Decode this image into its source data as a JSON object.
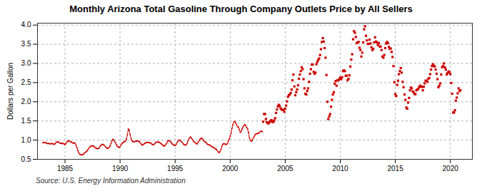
{
  "chart_data": {
    "type": "line",
    "title": "Monthly Arizona Total Gasoline Through Company Outlets Price by All Sellers",
    "ylabel": "Dollars per Gallon",
    "source": "Source: U.S. Energy Information Administration",
    "xlim": [
      1982.5,
      2022
    ],
    "ylim": [
      0.5,
      4.05
    ],
    "xticks": [
      1985,
      1990,
      1995,
      2000,
      2005,
      2010,
      2015,
      2020
    ],
    "yticks": [
      0.5,
      {
        "value": 1.0,
        "label": "1.0"
      },
      1.5,
      {
        "value": 2.0,
        "label": "2.0"
      },
      2.5,
      {
        "value": 3.0,
        "label": "3.0"
      },
      3.5,
      {
        "value": 4.0,
        "label": "4.0"
      }
    ],
    "grid": true,
    "series": [
      {
        "type": "line",
        "color": "#cc0000",
        "marker": "square",
        "x": [
          1983.0,
          1983.083,
          1983.167,
          1983.25,
          1983.333,
          1983.417,
          1983.5,
          1983.583,
          1983.667,
          1983.75,
          1983.833,
          1983.917,
          1984.0,
          1984.083,
          1984.167,
          1984.25,
          1984.333,
          1984.417,
          1984.5,
          1984.583,
          1984.667,
          1984.75,
          1984.833,
          1984.917,
          1985.0,
          1985.083,
          1985.167,
          1985.25,
          1985.333,
          1985.417,
          1985.5,
          1985.583,
          1985.667,
          1985.75,
          1985.833,
          1985.917,
          1986.0,
          1986.083,
          1986.167,
          1986.25,
          1986.333,
          1986.417,
          1986.5,
          1986.583,
          1986.667,
          1986.75,
          1986.833,
          1986.917,
          1987.0,
          1987.083,
          1987.167,
          1987.25,
          1987.333,
          1987.417,
          1987.5,
          1987.583,
          1987.667,
          1987.75,
          1987.833,
          1987.917,
          1988.0,
          1988.083,
          1988.167,
          1988.25,
          1988.333,
          1988.417,
          1988.5,
          1988.583,
          1988.667,
          1988.75,
          1988.833,
          1988.917,
          1989.0,
          1989.083,
          1989.167,
          1989.25,
          1989.333,
          1989.417,
          1989.5,
          1989.583,
          1989.667,
          1989.75,
          1989.833,
          1989.917,
          1990.0,
          1990.083,
          1990.167,
          1990.25,
          1990.333,
          1990.417,
          1990.5,
          1990.583,
          1990.667,
          1990.75,
          1990.833,
          1990.917,
          1991.0,
          1991.083,
          1991.167,
          1991.25,
          1991.333,
          1991.417,
          1991.5,
          1991.583,
          1991.667,
          1991.75,
          1991.833,
          1991.917,
          1992.0,
          1992.083,
          1992.167,
          1992.25,
          1992.333,
          1992.417,
          1992.5,
          1992.583,
          1992.667,
          1992.75,
          1992.833,
          1992.917,
          1993.0,
          1993.083,
          1993.167,
          1993.25,
          1993.333,
          1993.417,
          1993.5,
          1993.583,
          1993.667,
          1993.75,
          1993.833,
          1993.917,
          1994.0,
          1994.083,
          1994.167,
          1994.25,
          1994.333,
          1994.417,
          1994.5,
          1994.583,
          1994.667,
          1994.75,
          1994.833,
          1994.917,
          1995.0,
          1995.083,
          1995.167,
          1995.25,
          1995.333,
          1995.417,
          1995.5,
          1995.583,
          1995.667,
          1995.75,
          1995.833,
          1995.917,
          1996.0,
          1996.083,
          1996.167,
          1996.25,
          1996.333,
          1996.417,
          1996.5,
          1996.583,
          1996.667,
          1996.75,
          1996.833,
          1996.917,
          1997.0,
          1997.083,
          1997.167,
          1997.25,
          1997.333,
          1997.417,
          1997.5,
          1997.583,
          1997.667,
          1997.75,
          1997.833,
          1997.917,
          1998.0,
          1998.083,
          1998.167,
          1998.25,
          1998.333,
          1998.417,
          1998.5,
          1998.583,
          1998.667,
          1998.75,
          1998.833,
          1998.917,
          1999.0,
          1999.083,
          1999.167,
          1999.25,
          1999.333,
          1999.417,
          1999.5,
          1999.583,
          1999.667,
          1999.75,
          1999.833,
          1999.917,
          2000.0,
          2000.083,
          2000.167,
          2000.25,
          2000.333,
          2000.417,
          2000.5,
          2000.583,
          2000.667,
          2000.75,
          2000.833,
          2000.917,
          2001.0,
          2001.083,
          2001.167,
          2001.25,
          2001.333,
          2001.417,
          2001.5,
          2001.583,
          2001.667,
          2001.75,
          2001.833,
          2001.917,
          2002.0,
          2002.083,
          2002.167,
          2002.25,
          2002.333,
          2002.417,
          2002.5,
          2002.583,
          2002.667,
          2002.75,
          2002.833,
          2002.917
        ],
        "values": [
          0.93,
          0.94,
          0.94,
          0.93,
          0.92,
          0.91,
          0.91,
          0.91,
          0.9,
          0.91,
          0.91,
          0.9,
          0.89,
          0.9,
          0.93,
          0.95,
          0.95,
          0.95,
          0.93,
          0.92,
          0.91,
          0.92,
          0.91,
          0.9,
          0.88,
          0.91,
          0.95,
          0.97,
          0.98,
          0.97,
          0.96,
          0.95,
          0.93,
          0.92,
          0.93,
          0.92,
          0.87,
          0.8,
          0.73,
          0.67,
          0.63,
          0.62,
          0.62,
          0.62,
          0.63,
          0.66,
          0.68,
          0.7,
          0.72,
          0.75,
          0.79,
          0.82,
          0.84,
          0.85,
          0.85,
          0.85,
          0.83,
          0.8,
          0.79,
          0.78,
          0.78,
          0.79,
          0.83,
          0.86,
          0.88,
          0.89,
          0.88,
          0.86,
          0.83,
          0.8,
          0.79,
          0.79,
          0.81,
          0.84,
          0.91,
          0.97,
          1.02,
          1.01,
          0.97,
          0.93,
          0.88,
          0.84,
          0.82,
          0.81,
          0.83,
          0.87,
          0.91,
          0.93,
          0.95,
          0.96,
          0.97,
          1.03,
          1.14,
          1.29,
          1.26,
          1.14,
          1.04,
          0.98,
          0.96,
          0.96,
          0.96,
          0.97,
          0.97,
          0.98,
          0.97,
          0.96,
          0.93,
          0.9,
          0.87,
          0.88,
          0.9,
          0.92,
          0.93,
          0.94,
          0.94,
          0.94,
          0.93,
          0.93,
          0.91,
          0.89,
          0.88,
          0.89,
          0.91,
          0.94,
          0.95,
          0.95,
          0.95,
          0.94,
          0.92,
          0.9,
          0.88,
          0.86,
          0.84,
          0.86,
          0.89,
          0.93,
          0.97,
          0.99,
          0.98,
          0.96,
          0.93,
          0.9,
          0.88,
          0.86,
          0.86,
          0.88,
          0.93,
          0.97,
          1.0,
          1.0,
          0.98,
          0.96,
          0.93,
          0.9,
          0.88,
          0.87,
          0.88,
          0.91,
          0.97,
          1.03,
          1.07,
          1.08,
          1.05,
          1.01,
          0.97,
          0.95,
          0.93,
          0.91,
          0.9,
          0.93,
          0.98,
          1.02,
          1.04,
          1.05,
          1.03,
          0.99,
          0.96,
          0.95,
          0.93,
          0.9,
          0.88,
          0.88,
          0.87,
          0.85,
          0.83,
          0.82,
          0.81,
          0.79,
          0.77,
          0.76,
          0.73,
          0.69,
          0.68,
          0.7,
          0.76,
          0.84,
          0.89,
          0.91,
          0.9,
          0.89,
          0.89,
          0.91,
          0.97,
          1.03,
          1.1,
          1.18,
          1.31,
          1.4,
          1.47,
          1.49,
          1.45,
          1.4,
          1.35,
          1.34,
          1.28,
          1.2,
          1.23,
          1.29,
          1.34,
          1.38,
          1.4,
          1.38,
          1.33,
          1.29,
          1.2,
          1.06,
          1.0,
          0.97,
          0.99,
          1.04,
          1.09,
          1.13,
          1.16,
          1.17,
          1.17,
          1.18,
          1.2,
          1.23,
          1.23,
          1.22
        ]
      },
      {
        "type": "scatter",
        "color": "#cc0000",
        "marker": "square",
        "x": [
          2003.0,
          2003.083,
          2003.167,
          2003.25,
          2003.333,
          2003.417,
          2003.5,
          2003.583,
          2003.667,
          2003.75,
          2003.833,
          2003.917,
          2004.0,
          2004.083,
          2004.167,
          2004.25,
          2004.333,
          2004.417,
          2004.5,
          2004.583,
          2004.667,
          2004.75,
          2004.833,
          2004.917,
          2005.0,
          2005.083,
          2005.167,
          2005.25,
          2005.333,
          2005.417,
          2005.5,
          2005.583,
          2005.667,
          2005.75,
          2005.833,
          2005.917,
          2006.0,
          2006.083,
          2006.167,
          2006.25,
          2006.333,
          2006.417,
          2006.5,
          2006.583,
          2006.667,
          2006.75,
          2006.833,
          2006.917,
          2007.0,
          2007.083,
          2007.167,
          2007.25,
          2007.333,
          2007.417,
          2007.5,
          2007.583,
          2007.667,
          2007.75,
          2007.833,
          2007.917,
          2008.0,
          2008.083,
          2008.167,
          2008.25,
          2008.333,
          2008.417,
          2008.5,
          2008.583,
          2008.667,
          2008.75,
          2008.833,
          2008.917,
          2009.0,
          2009.083,
          2009.167,
          2009.25,
          2009.333,
          2009.417,
          2009.5,
          2009.583,
          2009.667,
          2009.75,
          2009.833,
          2009.917,
          2010.0,
          2010.083,
          2010.167,
          2010.25,
          2010.333,
          2010.417,
          2010.5,
          2010.583,
          2010.667,
          2010.75,
          2010.833,
          2010.917,
          2011.0,
          2011.083,
          2011.167,
          2011.25,
          2011.333,
          2011.417,
          2011.5,
          2011.583,
          2011.667,
          2011.75,
          2011.833,
          2011.917,
          2012.0,
          2012.083,
          2012.167,
          2012.25,
          2012.333,
          2012.417,
          2012.5,
          2012.583,
          2012.667,
          2012.75,
          2012.833,
          2012.917,
          2013.0,
          2013.083,
          2013.167,
          2013.25,
          2013.333,
          2013.417,
          2013.5,
          2013.583,
          2013.667,
          2013.75,
          2013.833,
          2013.917,
          2014.0,
          2014.083,
          2014.167,
          2014.25,
          2014.333,
          2014.417,
          2014.5,
          2014.583,
          2014.667,
          2014.75,
          2014.833,
          2014.917,
          2015.0,
          2015.083,
          2015.167,
          2015.25,
          2015.333,
          2015.417,
          2015.5,
          2015.583,
          2015.667,
          2015.75,
          2015.833,
          2015.917,
          2016.0,
          2016.083,
          2016.167,
          2016.25,
          2016.333,
          2016.417,
          2016.5,
          2016.583,
          2016.667,
          2016.75,
          2016.833,
          2016.917,
          2017.0,
          2017.083,
          2017.167,
          2017.25,
          2017.333,
          2017.417,
          2017.5,
          2017.583,
          2017.667,
          2017.75,
          2017.833,
          2017.917,
          2018.0,
          2018.083,
          2018.167,
          2018.25,
          2018.333,
          2018.417,
          2018.5,
          2018.583,
          2018.667,
          2018.75,
          2018.833,
          2018.917,
          2019.0,
          2019.083,
          2019.167,
          2019.25,
          2019.333,
          2019.417,
          2019.5,
          2019.583,
          2019.667,
          2019.75,
          2019.833,
          2019.917,
          2020.0,
          2020.083,
          2020.167,
          2020.25,
          2020.333,
          2020.417,
          2020.5,
          2020.583,
          2020.667,
          2020.75,
          2020.833,
          2020.917
        ],
        "values": [
          1.48,
          1.68,
          1.68,
          1.55,
          1.47,
          1.44,
          1.44,
          1.47,
          1.5,
          1.52,
          1.48,
          1.47,
          1.51,
          1.57,
          1.71,
          1.8,
          1.88,
          1.92,
          1.89,
          1.83,
          1.8,
          1.79,
          1.79,
          1.74,
          1.82,
          1.9,
          2.01,
          2.13,
          2.17,
          2.19,
          2.23,
          2.32,
          2.56,
          2.71,
          2.4,
          2.17,
          2.25,
          2.32,
          2.43,
          2.6,
          2.71,
          2.8,
          2.9,
          2.85,
          2.59,
          2.35,
          2.21,
          2.19,
          2.28,
          2.35,
          2.52,
          2.73,
          2.85,
          2.97,
          2.97,
          2.78,
          2.73,
          2.76,
          2.98,
          3.04,
          3.09,
          3.13,
          3.22,
          3.37,
          3.56,
          3.66,
          3.57,
          3.4,
          3.15,
          2.7,
          2.0,
          1.55,
          1.62,
          1.68,
          1.87,
          2.05,
          2.19,
          2.25,
          2.47,
          2.54,
          2.42,
          2.56,
          2.56,
          2.59,
          2.63,
          2.59,
          2.64,
          2.8,
          2.82,
          2.8,
          2.68,
          2.68,
          2.56,
          2.6,
          2.69,
          2.92,
          3.1,
          3.24,
          3.63,
          3.84,
          3.8,
          3.69,
          3.53,
          3.55,
          3.56,
          3.41,
          3.35,
          3.18,
          3.28,
          3.55,
          3.89,
          3.97,
          3.72,
          3.6,
          3.51,
          3.51,
          3.62,
          3.52,
          3.42,
          3.35,
          3.38,
          3.55,
          3.68,
          3.57,
          3.55,
          3.48,
          3.53,
          3.44,
          3.44,
          3.35,
          3.18,
          3.15,
          3.22,
          3.4,
          3.52,
          3.56,
          3.53,
          3.43,
          3.38,
          3.39,
          3.3,
          3.17,
          2.93,
          2.51,
          2.2,
          2.15,
          2.44,
          2.55,
          2.72,
          2.8,
          2.88,
          2.76,
          2.52,
          2.38,
          2.19,
          2.05,
          1.85,
          1.82,
          1.98,
          2.1,
          2.3,
          2.37,
          2.35,
          2.27,
          2.25,
          2.2,
          2.2,
          2.3,
          2.32,
          2.33,
          2.38,
          2.42,
          2.4,
          2.39,
          2.3,
          2.39,
          2.48,
          2.55,
          2.55,
          2.52,
          2.6,
          2.62,
          2.72,
          2.84,
          2.93,
          2.98,
          2.94,
          2.92,
          2.84,
          2.73,
          2.59,
          2.38,
          2.42,
          2.48,
          2.71,
          2.9,
          2.93,
          3.0,
          2.9,
          2.84,
          2.71,
          2.75,
          2.79,
          2.77,
          2.72,
          2.49,
          2.21,
          1.72,
          1.72,
          1.78,
          2.03,
          2.11,
          2.22,
          2.35,
          2.28,
          2.3
        ]
      }
    ]
  }
}
